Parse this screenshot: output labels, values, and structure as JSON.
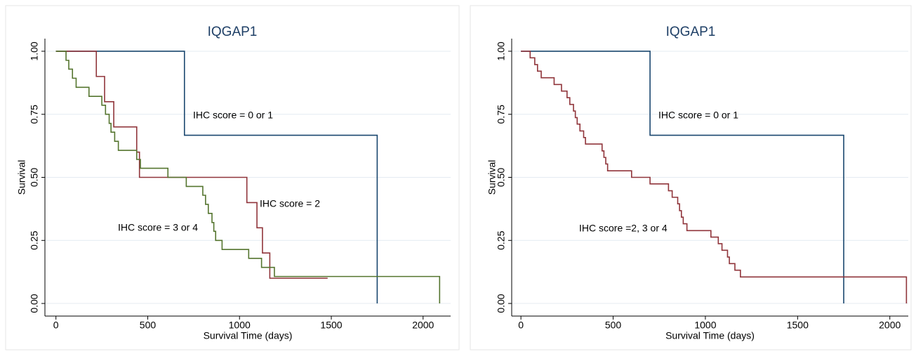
{
  "chart_data": [
    {
      "type": "line",
      "step": true,
      "title": "IQGAP1",
      "x_label": "Survival Time (days)",
      "y_label": "Survival",
      "xlim": [
        -60,
        2150
      ],
      "ylim": [
        -0.05,
        1.05
      ],
      "xticks": [
        0,
        500,
        1000,
        1500,
        2000
      ],
      "yticks": [
        {
          "value": 0,
          "label": "0.00"
        },
        {
          "value": 0.25,
          "label": "0.25"
        },
        {
          "value": 0.5,
          "label": "0.50"
        },
        {
          "value": 0.75,
          "label": "0.75"
        },
        {
          "value": 1,
          "label": "1.00"
        }
      ],
      "grid": true,
      "series": [
        {
          "name": "IHC score = 0 or 1",
          "color": "#1a476f",
          "x": [
            0,
            700,
            1750
          ],
          "values": [
            1,
            0.667,
            0
          ]
        },
        {
          "name": "IHC score = 2",
          "color": "#90353b",
          "x": [
            0,
            220,
            265,
            315,
            440,
            455,
            1040,
            1095,
            1125,
            1165,
            1480
          ],
          "values": [
            1,
            0.9,
            0.8,
            0.7,
            0.6,
            0.5,
            0.4,
            0.3,
            0.2,
            0.1,
            0.1
          ]
        },
        {
          "name": "IHC score = 3 or 4",
          "color": "#55752f",
          "x": [
            0,
            55,
            70,
            90,
            110,
            180,
            250,
            270,
            290,
            300,
            320,
            340,
            440,
            460,
            610,
            710,
            800,
            815,
            830,
            850,
            860,
            870,
            905,
            1050,
            1120,
            1190,
            2090
          ],
          "values": [
            1,
            0.964,
            0.929,
            0.893,
            0.857,
            0.821,
            0.786,
            0.75,
            0.714,
            0.679,
            0.643,
            0.607,
            0.571,
            0.536,
            0.5,
            0.464,
            0.429,
            0.393,
            0.357,
            0.321,
            0.286,
            0.25,
            0.214,
            0.179,
            0.143,
            0.107,
            0
          ]
        }
      ]
    },
    {
      "type": "line",
      "step": true,
      "title": "IQGAP1",
      "x_label": "Survival Time (days)",
      "y_label": "Survival",
      "xlim": [
        -50,
        2100
      ],
      "ylim": [
        -0.05,
        1.05
      ],
      "xticks": [
        0,
        500,
        1000,
        1500,
        2000
      ],
      "yticks": [
        {
          "value": 0,
          "label": "0.00"
        },
        {
          "value": 0.25,
          "label": "0.25"
        },
        {
          "value": 0.5,
          "label": "0.50"
        },
        {
          "value": 0.75,
          "label": "0.75"
        },
        {
          "value": 1,
          "label": "1.00"
        }
      ],
      "grid": true,
      "series": [
        {
          "name": "IHC score = 0 or 1",
          "color": "#1a476f",
          "x": [
            0,
            700,
            1750
          ],
          "values": [
            1,
            0.667,
            0
          ]
        },
        {
          "name": "IHC score =2, 3 or 4",
          "color": "#90353b",
          "x": [
            0,
            50,
            75,
            90,
            110,
            180,
            220,
            250,
            265,
            285,
            295,
            305,
            320,
            340,
            350,
            440,
            450,
            460,
            470,
            600,
            700,
            800,
            820,
            850,
            860,
            870,
            880,
            900,
            1030,
            1070,
            1090,
            1120,
            1130,
            1160,
            1190,
            2090
          ],
          "values": [
            1,
            0.974,
            0.947,
            0.921,
            0.895,
            0.868,
            0.842,
            0.816,
            0.789,
            0.763,
            0.737,
            0.711,
            0.684,
            0.658,
            0.632,
            0.605,
            0.579,
            0.553,
            0.526,
            0.5,
            0.474,
            0.447,
            0.421,
            0.395,
            0.368,
            0.342,
            0.316,
            0.289,
            0.263,
            0.237,
            0.211,
            0.184,
            0.158,
            0.132,
            0.105,
            0
          ]
        }
      ]
    }
  ]
}
